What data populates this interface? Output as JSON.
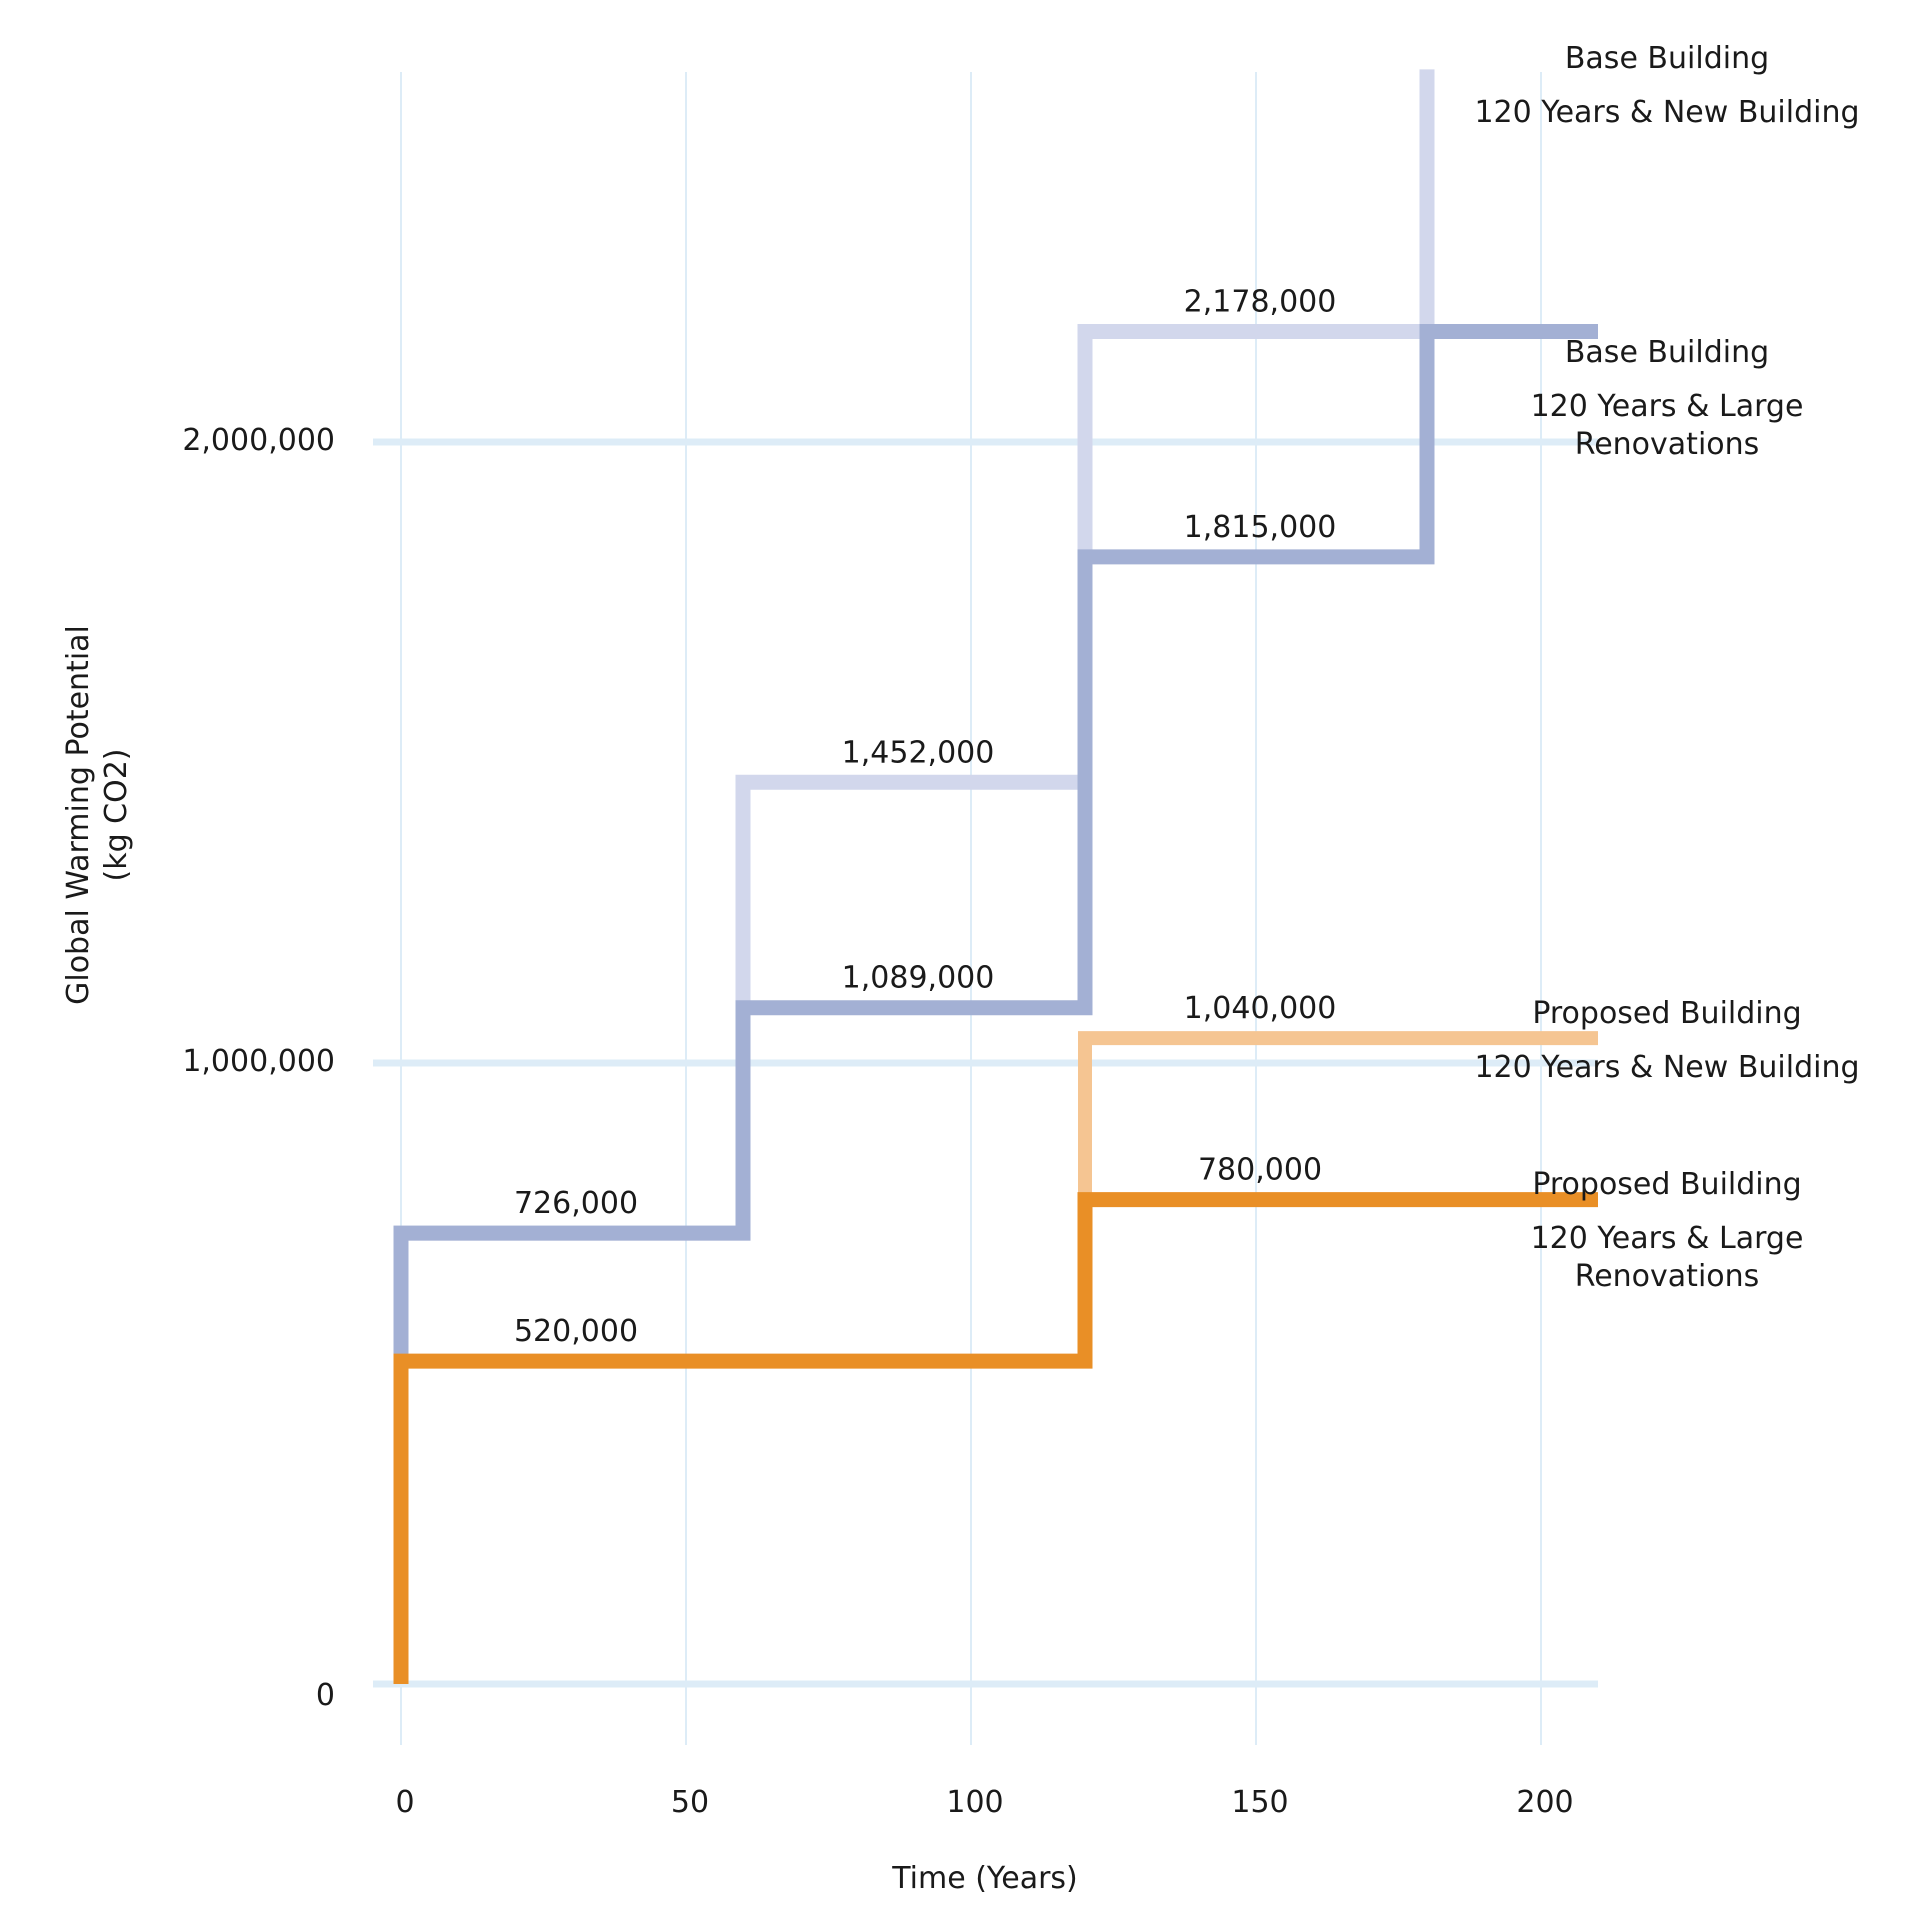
{
  "chart_data": {
    "type": "line",
    "subtype": "step",
    "title": "",
    "xlabel": "Time (Years)",
    "ylabel": [
      "Global Warming Potential",
      "(kg CO2)"
    ],
    "xlim": [
      0,
      210
    ],
    "ylim": [
      0,
      2600000
    ],
    "grid": true,
    "x_ticks": [
      0,
      50,
      100,
      150,
      200
    ],
    "x_tick_labels": [
      "0",
      "50",
      "100",
      "150",
      "200"
    ],
    "y_ticks": [
      0,
      1000000,
      2000000
    ],
    "y_tick_labels": [
      "0",
      "1,000,000",
      "2,000,000"
    ],
    "series": [
      {
        "name": "Base Building 120 Years & New Building",
        "label_lines": [
          "Base Building",
          "120 Years & New Building"
        ],
        "color": "#d2d7ec",
        "steps": [
          [
            0,
            726000
          ],
          [
            60,
            1452000
          ],
          [
            120,
            2178000
          ],
          [
            180,
            2600000
          ]
        ],
        "x_end": 180
      },
      {
        "name": "Base Building 120 Years & Large Renovations",
        "label_lines": [
          "Base Building",
          "120 Years & Large",
          "Renovations"
        ],
        "color": "#a3b0d4",
        "steps": [
          [
            0,
            726000
          ],
          [
            60,
            1089000
          ],
          [
            120,
            1815000
          ],
          [
            180,
            2178000
          ]
        ],
        "x_end": 210
      },
      {
        "name": "Proposed Building 120 Years & New Building",
        "label_lines": [
          "Proposed Building",
          "120 Years & New Building"
        ],
        "color": "#f5c592",
        "steps": [
          [
            0,
            520000
          ],
          [
            120,
            1040000
          ]
        ],
        "x_end": 210
      },
      {
        "name": "Proposed Building 120 Years & Large Renovations",
        "label_lines": [
          "Proposed Building",
          "120 Years & Large",
          "Renovations"
        ],
        "color": "#e98f26",
        "steps": [
          [
            0,
            520000
          ],
          [
            120,
            780000
          ]
        ],
        "x_end": 210
      }
    ],
    "annotations": [
      {
        "text": "726,000",
        "x": 30,
        "y": 726000
      },
      {
        "text": "520,000",
        "x": 30,
        "y": 520000
      },
      {
        "text": "1,452,000",
        "x": 90,
        "y": 1452000
      },
      {
        "text": "1,089,000",
        "x": 90,
        "y": 1089000
      },
      {
        "text": "2,178,000",
        "x": 150,
        "y": 2178000
      },
      {
        "text": "1,815,000",
        "x": 150,
        "y": 1815000
      },
      {
        "text": "1,040,000",
        "x": 150,
        "y": 1040000
      },
      {
        "text": "780,000",
        "x": 150,
        "y": 780000
      }
    ],
    "colors": {
      "grid": "#ddecf7",
      "text": "#1a1a1a"
    }
  }
}
